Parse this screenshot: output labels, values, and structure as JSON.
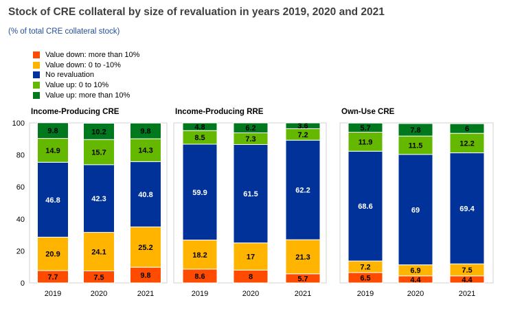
{
  "title": "Stock of CRE collateral by size of revaluation in years 2019, 2020 and 2021",
  "subtitle": "(% of total CRE collateral stock)",
  "legend": [
    {
      "label": "Value down: more than 10%",
      "color": "#ff4b00"
    },
    {
      "label": "Value down: 0 to -10%",
      "color": "#ffb400"
    },
    {
      "label": "No revaluation",
      "color": "#003299"
    },
    {
      "label": "Value up: 0 to 10%",
      "color": "#65b800"
    },
    {
      "label": "Value up: more than 10%",
      "color": "#00781e"
    }
  ],
  "chart_data": [
    {
      "type": "bar",
      "stacked": true,
      "title": "Income-Producing CRE",
      "categories": [
        "2019",
        "2020",
        "2021"
      ],
      "ylim": [
        0,
        100
      ],
      "yticks": [
        0,
        20,
        40,
        60,
        80,
        100
      ],
      "series": [
        {
          "name": "Value down: more than 10%",
          "values": [
            7.7,
            7.5,
            9.8
          ]
        },
        {
          "name": "Value down: 0 to -10%",
          "values": [
            20.9,
            24.1,
            25.2
          ]
        },
        {
          "name": "No revaluation",
          "values": [
            46.8,
            42.3,
            40.8
          ]
        },
        {
          "name": "Value up: 0 to 10%",
          "values": [
            14.9,
            15.7,
            14.3
          ]
        },
        {
          "name": "Value up: more than 10%",
          "values": [
            9.8,
            10.2,
            9.8
          ]
        }
      ]
    },
    {
      "type": "bar",
      "stacked": true,
      "title": "Income-Producing RRE",
      "categories": [
        "2019",
        "2020",
        "2021"
      ],
      "ylim": [
        0,
        100
      ],
      "series": [
        {
          "name": "Value down: more than 10%",
          "values": [
            8.6,
            8,
            5.7
          ]
        },
        {
          "name": "Value down: 0 to -10%",
          "values": [
            18.2,
            17,
            21.3
          ]
        },
        {
          "name": "No revaluation",
          "values": [
            59.9,
            61.5,
            62.2
          ]
        },
        {
          "name": "Value up: 0 to 10%",
          "values": [
            8.5,
            7.3,
            7.2
          ]
        },
        {
          "name": "Value up: more than 10%",
          "values": [
            4.8,
            6.2,
            3.6
          ]
        }
      ]
    },
    {
      "type": "bar",
      "stacked": true,
      "title": "Own-Use CRE",
      "categories": [
        "2019",
        "2020",
        "2021"
      ],
      "ylim": [
        0,
        100
      ],
      "series": [
        {
          "name": "Value down: more than 10%",
          "values": [
            6.5,
            4.4,
            4.4
          ]
        },
        {
          "name": "Value down: 0 to -10%",
          "values": [
            7.2,
            6.9,
            7.5
          ]
        },
        {
          "name": "No revaluation",
          "values": [
            68.6,
            69,
            69.4
          ]
        },
        {
          "name": "Value up: 0 to 10%",
          "values": [
            11.9,
            11.5,
            12.2
          ]
        },
        {
          "name": "Value up: more than 10%",
          "values": [
            5.7,
            7.8,
            6
          ]
        }
      ]
    }
  ]
}
